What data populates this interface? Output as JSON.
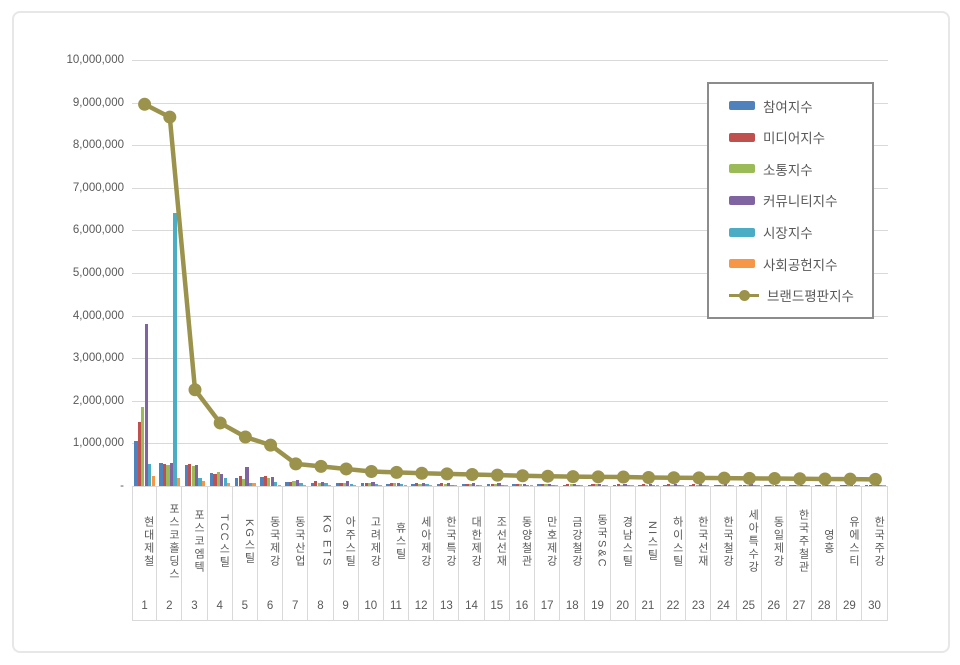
{
  "colors": {
    "grid": "#d9d9d9",
    "text": "#595959",
    "legend_border": "#8c8c8c",
    "line": "#9b924c"
  },
  "chart_data": {
    "type": "bar",
    "subtype": "grouped-bars-with-line-overlay",
    "title": "",
    "xlabel": "",
    "ylabel": "",
    "ylim": [
      0,
      10000000
    ],
    "grid": true,
    "legend_position": "inside-top-right",
    "y_ticks": [
      "10,000,000",
      "9,000,000",
      "8,000,000",
      "7,000,000",
      "6,000,000",
      "5,000,000",
      "4,000,000",
      "3,000,000",
      "2,000,000",
      "1,000,000",
      "-"
    ],
    "categories": [
      "현대제철",
      "포스코홀딩스",
      "포스코엠텍",
      "TCC스틸",
      "KG스틸",
      "동국제강",
      "동국산업",
      "KG ETS",
      "아주스틸",
      "고려제강",
      "휴스틸",
      "세아제강",
      "한국특강",
      "대한제강",
      "조선선재",
      "동양철관",
      "만호제강",
      "금강철강",
      "동국S&C",
      "경남스틸",
      "NI스틸",
      "하이스틸",
      "한국선재",
      "한국철강",
      "세아특수강",
      "동일제강",
      "한국주철관",
      "영흥",
      "유에스티",
      "한국주강"
    ],
    "ranks": [
      "1",
      "2",
      "3",
      "4",
      "5",
      "6",
      "7",
      "8",
      "9",
      "10",
      "11",
      "12",
      "13",
      "14",
      "15",
      "16",
      "17",
      "18",
      "19",
      "20",
      "21",
      "22",
      "23",
      "24",
      "25",
      "26",
      "27",
      "28",
      "29",
      "30"
    ],
    "series_meta": [
      {
        "key": "participation",
        "label": "참여지수",
        "color": "#4F81BD",
        "type": "bar"
      },
      {
        "key": "media",
        "label": "미디어지수",
        "color": "#C0504D",
        "type": "bar"
      },
      {
        "key": "communication",
        "label": "소통지수",
        "color": "#9BBB59",
        "type": "bar"
      },
      {
        "key": "community",
        "label": "커뮤니티지수",
        "color": "#8064A2",
        "type": "bar"
      },
      {
        "key": "market",
        "label": "시장지수",
        "color": "#4BACC6",
        "type": "bar"
      },
      {
        "key": "social",
        "label": "사회공헌지수",
        "color": "#F79646",
        "type": "bar"
      },
      {
        "key": "brand",
        "label": "브랜드평판지수",
        "color": "#9B924C",
        "type": "line"
      }
    ],
    "series": [
      {
        "name": "참여지수",
        "values": [
          1050000,
          530000,
          490000,
          310000,
          180000,
          200000,
          90000,
          70000,
          60000,
          60000,
          50000,
          50000,
          50000,
          45000,
          45000,
          40000,
          40000,
          35000,
          35000,
          35000,
          30000,
          30000,
          30000,
          30000,
          30000,
          30000,
          25000,
          25000,
          25000,
          25000
        ]
      },
      {
        "name": "미디어지수",
        "values": [
          1500000,
          510000,
          510000,
          280000,
          230000,
          230000,
          100000,
          120000,
          80000,
          70000,
          70000,
          60000,
          60000,
          55000,
          55000,
          50000,
          50000,
          45000,
          45000,
          45000,
          40000,
          40000,
          40000,
          35000,
          35000,
          35000,
          35000,
          35000,
          30000,
          30000
        ]
      },
      {
        "name": "소통지수",
        "values": [
          1850000,
          500000,
          470000,
          340000,
          170000,
          180000,
          110000,
          80000,
          70000,
          60000,
          60000,
          50000,
          50000,
          50000,
          45000,
          45000,
          40000,
          40000,
          40000,
          35000,
          35000,
          35000,
          30000,
          30000,
          30000,
          30000,
          30000,
          25000,
          25000,
          25000
        ]
      },
      {
        "name": "커뮤니티지수",
        "values": [
          3800000,
          540000,
          490000,
          290000,
          450000,
          220000,
          130000,
          100000,
          120000,
          90000,
          80000,
          80000,
          70000,
          65000,
          60000,
          55000,
          50000,
          50000,
          45000,
          45000,
          45000,
          40000,
          40000,
          40000,
          40000,
          35000,
          35000,
          35000,
          35000,
          30000
        ]
      },
      {
        "name": "시장지수",
        "values": [
          520000,
          6400000,
          190000,
          190000,
          60000,
          100000,
          70000,
          70000,
          50000,
          40000,
          40000,
          40000,
          35000,
          35000,
          30000,
          30000,
          30000,
          30000,
          30000,
          30000,
          30000,
          30000,
          30000,
          30000,
          25000,
          25000,
          25000,
          25000,
          25000,
          25000
        ]
      },
      {
        "name": "사회공헌지수",
        "values": [
          240000,
          180000,
          110000,
          70000,
          60000,
          30000,
          20000,
          20000,
          20000,
          20000,
          20000,
          20000,
          20000,
          20000,
          20000,
          20000,
          20000,
          20000,
          20000,
          20000,
          20000,
          20000,
          20000,
          20000,
          20000,
          20000,
          20000,
          20000,
          20000,
          20000
        ]
      },
      {
        "name": "브랜드평판지수",
        "values": [
          8960000,
          8660000,
          2260000,
          1480000,
          1150000,
          960000,
          520000,
          460000,
          400000,
          340000,
          320000,
          300000,
          285000,
          270000,
          255000,
          240000,
          230000,
          220000,
          215000,
          210000,
          200000,
          195000,
          190000,
          185000,
          180000,
          175000,
          170000,
          165000,
          160000,
          155000
        ]
      }
    ]
  }
}
